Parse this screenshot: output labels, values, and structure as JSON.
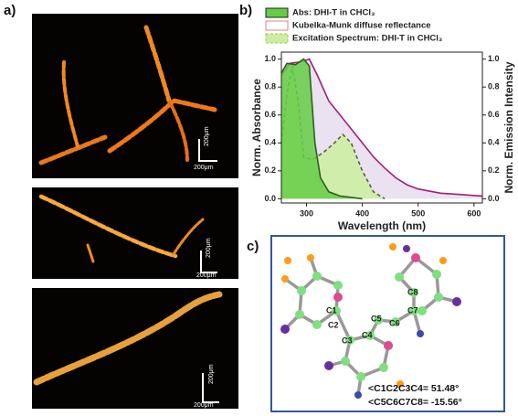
{
  "panels": {
    "a": "a)",
    "b": "b)",
    "c": "c)"
  },
  "micrographs": [
    [
      "200μm",
      "200μm"
    ],
    [
      "200μm",
      "200μm"
    ],
    [
      "200μm",
      "200μm"
    ]
  ],
  "molecule": {
    "atoms": [
      "C1",
      "C2",
      "C3",
      "C4",
      "C5",
      "C6",
      "C7",
      "C8"
    ],
    "angles": [
      "<C1C2C3C4= 51.48°",
      "<C5C6C7C8= -15.56°"
    ]
  },
  "chart_data": {
    "type": "area",
    "xlabel": "Wavelength (nm)",
    "ylabel": "Norm. Absorbance",
    "y2label": "Norm. Emission Intensity",
    "xlim": [
      255,
      615
    ],
    "xticks": [
      300,
      400,
      500,
      600
    ],
    "ylim": [
      -0.03,
      1.05
    ],
    "yticks": [
      {
        "value": 0,
        "label": "0.0"
      },
      {
        "value": 0.2,
        "label": "0.2"
      },
      {
        "value": 0.4,
        "label": "0.4"
      },
      {
        "value": 0.6,
        "label": "0.6"
      },
      {
        "value": 0.8,
        "label": "0.8"
      },
      {
        "value": 1,
        "label": "1.0"
      }
    ],
    "y2lim": [
      -0.03,
      1.05
    ],
    "y2ticks": [
      {
        "value": 0,
        "label": "0.0"
      },
      {
        "value": 0.2,
        "label": "0.2"
      },
      {
        "value": 0.4,
        "label": "0.4"
      },
      {
        "value": 0.6,
        "label": "0.6"
      },
      {
        "value": 0.8,
        "label": "0.8"
      },
      {
        "value": 1,
        "label": "1.0"
      }
    ],
    "series": [
      {
        "name": "Kubelka-Munk diffuse reflectance",
        "color": "#a0207a",
        "fill": "#e6dcef",
        "dash": false,
        "x": [
          255,
          270,
          290,
          305,
          320,
          340,
          360,
          380,
          400,
          420,
          440,
          460,
          480,
          500,
          540,
          615
        ],
        "values": [
          0.88,
          0.97,
          0.98,
          1.0,
          0.88,
          0.7,
          0.6,
          0.5,
          0.4,
          0.3,
          0.22,
          0.15,
          0.1,
          0.07,
          0.04,
          0.02
        ]
      },
      {
        "name": "Excitation Spectrum: DHI-T in CHCl₃",
        "color": "#555f3a",
        "fill": "#cdeea0",
        "dash": true,
        "x": [
          255,
          265,
          275,
          285,
          295,
          310,
          330,
          350,
          365,
          380,
          400,
          420,
          440
        ],
        "values": [
          0.4,
          0.75,
          0.95,
          0.7,
          0.3,
          0.28,
          0.33,
          0.4,
          0.46,
          0.4,
          0.2,
          0.05,
          0
        ]
      },
      {
        "name": "Abs: DHI-T in  CHCl₃",
        "color": "#2f5f20",
        "fill": "#66cc44",
        "dash": false,
        "x": [
          255,
          265,
          280,
          295,
          305,
          315,
          325,
          340,
          360,
          400
        ],
        "values": [
          0.9,
          0.97,
          0.96,
          1.0,
          0.95,
          0.4,
          0.15,
          0.05,
          0.02,
          0
        ]
      }
    ]
  }
}
